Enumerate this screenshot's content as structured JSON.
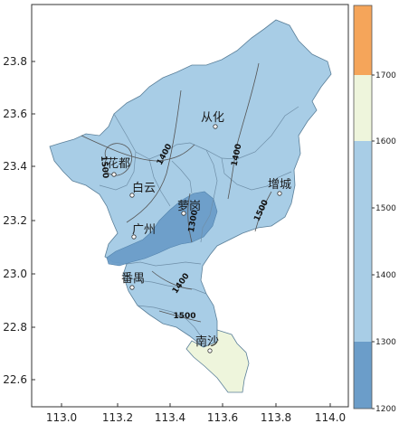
{
  "map": {
    "x_ticks": [
      "113.0",
      "113.2",
      "113.4",
      "113.6",
      "113.8",
      "114.0"
    ],
    "y_ticks": [
      "23.8",
      "23.6",
      "23.4",
      "23.2",
      "23.0",
      "22.8",
      "22.6"
    ],
    "places": [
      {
        "key": "conghua",
        "label": "从化"
      },
      {
        "key": "huadu",
        "label": "花都"
      },
      {
        "key": "baiyun",
        "label": "白云"
      },
      {
        "key": "luogang",
        "label": "萝岗"
      },
      {
        "key": "guangzhou",
        "label": "广州"
      },
      {
        "key": "zengcheng",
        "label": "增城"
      },
      {
        "key": "panyu",
        "label": "番禺"
      },
      {
        "key": "nansha",
        "label": "南沙"
      }
    ],
    "contour_labels": [
      "1400",
      "1500",
      "1400",
      "1300",
      "1400",
      "1500",
      "1400",
      "1500"
    ],
    "colors": {
      "class_1200_1300": "#6b9dc9",
      "class_1300_1600": "#a8cde6",
      "class_1600_1700": "#eef5dc",
      "class_1700_plus": "#f5a55a"
    }
  },
  "colorbar": {
    "labels": [
      "1200",
      "1300",
      "1400",
      "1500",
      "1600",
      "1700"
    ],
    "segments": [
      {
        "class": "1200-1300",
        "color": "#6b9dc9"
      },
      {
        "class": "1300-1400",
        "color": "#a8cde6"
      },
      {
        "class": "1400-1500",
        "color": "#a8cde6"
      },
      {
        "class": "1500-1600",
        "color": "#a8cde6"
      },
      {
        "class": "1600-1700",
        "color": "#eef5dc"
      },
      {
        "class": "1700+",
        "color": "#f5a55a"
      }
    ]
  }
}
